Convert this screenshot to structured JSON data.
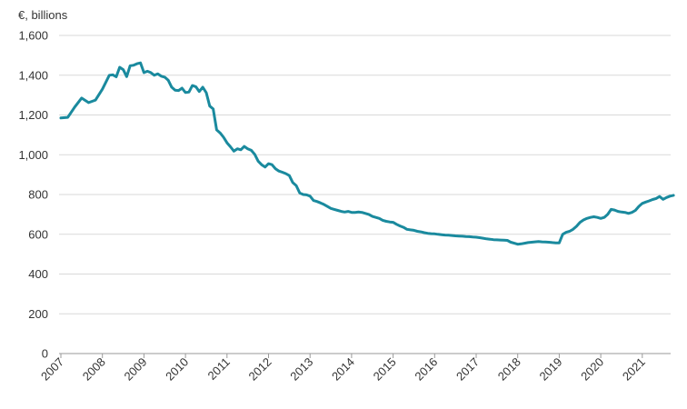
{
  "chart_data": {
    "type": "line",
    "unit_label": "€, billions",
    "ylim": [
      0,
      1600
    ],
    "y_ticks": [
      {
        "value": 0,
        "label": "0"
      },
      {
        "value": 200,
        "label": "200"
      },
      {
        "value": 400,
        "label": "400"
      },
      {
        "value": 600,
        "label": "600"
      },
      {
        "value": 800,
        "label": "800"
      },
      {
        "value": 1000,
        "label": "1,000"
      },
      {
        "value": 1200,
        "label": "1,200"
      },
      {
        "value": 1400,
        "label": "1,400"
      },
      {
        "value": 1600,
        "label": "1,600"
      }
    ],
    "x_ticks": [
      "2007",
      "2008",
      "2009",
      "2010",
      "2011",
      "2012",
      "2013",
      "2014",
      "2015",
      "2016",
      "2017",
      "2018",
      "2019",
      "2020",
      "2021"
    ],
    "grid": "horizontal",
    "series_color": "#1a8a9e",
    "x": [
      "2007-01",
      "2007-03",
      "2007-05",
      "2007-07",
      "2007-09",
      "2007-11",
      "2008-01",
      "2008-03",
      "2008-04",
      "2008-05",
      "2008-06",
      "2008-07",
      "2008-08",
      "2008-09",
      "2008-10",
      "2008-11",
      "2008-12",
      "2009-01",
      "2009-02",
      "2009-03",
      "2009-04",
      "2009-05",
      "2009-06",
      "2009-07",
      "2009-08",
      "2009-09",
      "2009-10",
      "2009-11",
      "2009-12",
      "2010-01",
      "2010-02",
      "2010-03",
      "2010-04",
      "2010-05",
      "2010-06",
      "2010-07",
      "2010-08",
      "2010-09",
      "2010-10",
      "2010-11",
      "2010-12",
      "2011-01",
      "2011-02",
      "2011-03",
      "2011-04",
      "2011-05",
      "2011-06",
      "2011-07",
      "2011-08",
      "2011-09",
      "2011-10",
      "2011-11",
      "2011-12",
      "2012-01",
      "2012-02",
      "2012-03",
      "2012-04",
      "2012-05",
      "2012-06",
      "2012-07",
      "2012-08",
      "2012-09",
      "2012-10",
      "2012-11",
      "2012-12",
      "2013-01",
      "2013-02",
      "2013-03",
      "2013-04",
      "2013-05",
      "2013-06",
      "2013-07",
      "2013-08",
      "2013-09",
      "2013-10",
      "2013-11",
      "2013-12",
      "2014-01",
      "2014-02",
      "2014-03",
      "2014-04",
      "2014-05",
      "2014-06",
      "2014-07",
      "2014-08",
      "2014-09",
      "2014-10",
      "2014-11",
      "2014-12",
      "2015-01",
      "2015-02",
      "2015-03",
      "2015-04",
      "2015-05",
      "2015-06",
      "2015-07",
      "2015-08",
      "2015-09",
      "2015-10",
      "2015-11",
      "2015-12",
      "2016-01",
      "2016-02",
      "2016-03",
      "2016-04",
      "2016-05",
      "2016-06",
      "2016-07",
      "2016-08",
      "2016-09",
      "2016-10",
      "2016-11",
      "2016-12",
      "2017-01",
      "2017-02",
      "2017-03",
      "2017-04",
      "2017-05",
      "2017-06",
      "2017-07",
      "2017-08",
      "2017-09",
      "2017-10",
      "2017-11",
      "2017-12",
      "2018-01",
      "2018-02",
      "2018-03",
      "2018-04",
      "2018-05",
      "2018-06",
      "2018-07",
      "2018-08",
      "2018-09",
      "2018-10",
      "2018-11",
      "2018-12",
      "2019-01",
      "2019-02",
      "2019-03",
      "2019-04",
      "2019-05",
      "2019-06",
      "2019-07",
      "2019-08",
      "2019-09",
      "2019-10",
      "2019-11",
      "2019-12",
      "2020-01",
      "2020-02",
      "2020-03",
      "2020-04",
      "2020-05",
      "2020-06",
      "2020-07",
      "2020-08",
      "2020-09",
      "2020-10",
      "2020-11",
      "2020-12",
      "2021-01",
      "2021-02",
      "2021-03",
      "2021-04",
      "2021-05",
      "2021-06",
      "2021-07",
      "2021-08",
      "2021-09",
      "2021-10"
    ],
    "values": [
      1185,
      1188,
      1240,
      1285,
      1262,
      1275,
      1330,
      1400,
      1402,
      1392,
      1440,
      1428,
      1393,
      1448,
      1450,
      1458,
      1462,
      1413,
      1420,
      1413,
      1400,
      1407,
      1395,
      1390,
      1375,
      1340,
      1325,
      1323,
      1335,
      1313,
      1315,
      1348,
      1342,
      1318,
      1340,
      1312,
      1245,
      1230,
      1125,
      1110,
      1088,
      1060,
      1040,
      1018,
      1030,
      1025,
      1042,
      1030,
      1022,
      1002,
      968,
      950,
      938,
      955,
      950,
      930,
      918,
      912,
      905,
      895,
      860,
      845,
      808,
      800,
      798,
      792,
      770,
      765,
      758,
      750,
      740,
      730,
      725,
      720,
      715,
      712,
      715,
      710,
      710,
      712,
      710,
      705,
      700,
      690,
      685,
      680,
      670,
      665,
      662,
      660,
      650,
      642,
      635,
      625,
      622,
      620,
      615,
      612,
      608,
      605,
      603,
      602,
      600,
      598,
      596,
      595,
      594,
      592,
      591,
      590,
      589,
      588,
      586,
      585,
      583,
      580,
      577,
      575,
      573,
      572,
      571,
      570,
      569,
      560,
      555,
      550,
      552,
      555,
      558,
      560,
      562,
      563,
      562,
      561,
      560,
      558,
      557,
      557,
      600,
      610,
      615,
      625,
      640,
      660,
      672,
      680,
      685,
      688,
      685,
      680,
      685,
      700,
      725,
      722,
      715,
      712,
      710,
      705,
      710,
      720,
      740,
      755,
      762,
      768,
      775,
      780,
      790,
      776,
      785,
      792,
      796
    ]
  }
}
